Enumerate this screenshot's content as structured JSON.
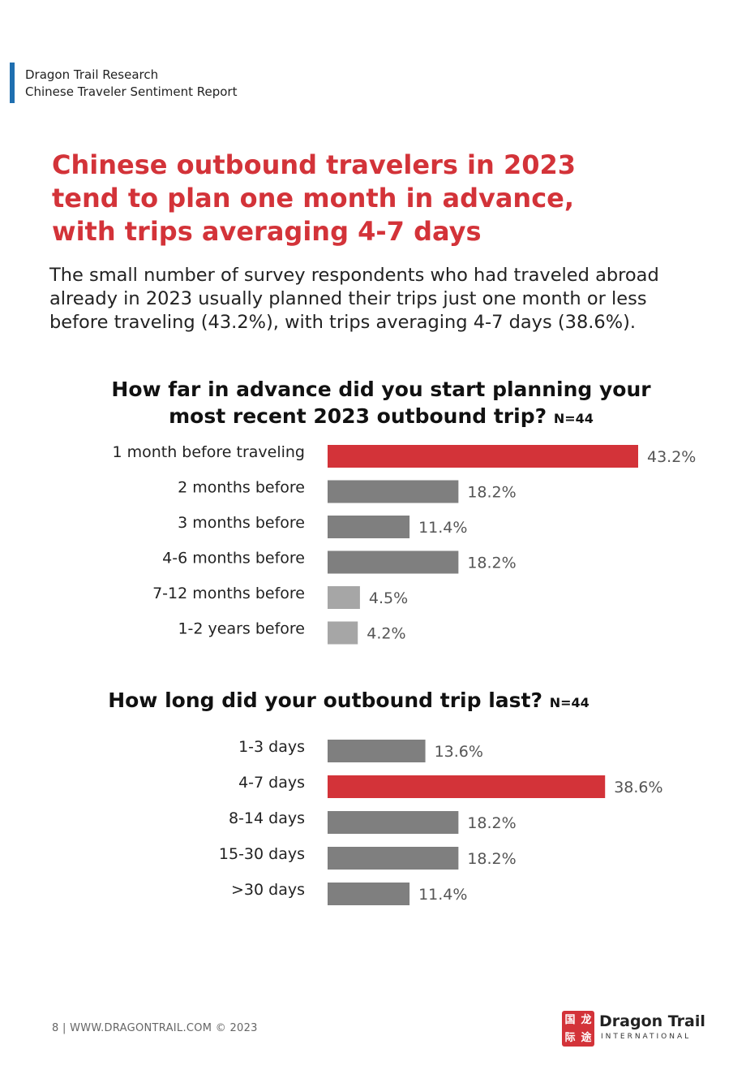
{
  "header": {
    "line1": "Dragon Trail Research",
    "line2": "Chinese Traveler Sentiment Report",
    "accent_color": "#1f6fb0"
  },
  "title": "Chinese outbound travelers in 2023 tend to plan one month in advance, with trips averaging 4-7 days",
  "intro": "The small number of survey respondents who had traveled abroad already in 2023 usually planned their trips just one month or less before traveling (43.2%), with trips averaging 4-7 days (38.6%).",
  "chart_data": [
    {
      "type": "bar",
      "orientation": "horizontal",
      "title": "How far in advance did you start planning your most recent 2023 outbound trip?",
      "sample_note": "N=44",
      "categories": [
        "1 month before traveling",
        "2 months before",
        "3 months before",
        "4-6 months before",
        "7-12 months before",
        "1-2 years before"
      ],
      "values": [
        43.2,
        18.2,
        11.4,
        18.2,
        4.5,
        4.2
      ],
      "value_labels": [
        "43.2%",
        "18.2%",
        "11.4%",
        "18.2%",
        "4.5%",
        "4.2%"
      ],
      "bar_colors": [
        "#d33339",
        "#7f7f7f",
        "#7f7f7f",
        "#7f7f7f",
        "#a6a6a6",
        "#a6a6a6"
      ],
      "xlim": [
        0,
        43.2
      ]
    },
    {
      "type": "bar",
      "orientation": "horizontal",
      "title": "How long did your outbound trip last?",
      "sample_note": "N=44",
      "categories": [
        "1-3 days",
        "4-7 days",
        "8-14 days",
        "15-30 days",
        ">30 days"
      ],
      "values": [
        13.6,
        38.6,
        18.2,
        18.2,
        11.4
      ],
      "value_labels": [
        "13.6%",
        "38.6%",
        "18.2%",
        "18.2%",
        "11.4%"
      ],
      "bar_colors": [
        "#7f7f7f",
        "#d33339",
        "#7f7f7f",
        "#7f7f7f",
        "#7f7f7f"
      ],
      "xlim": [
        0,
        43.2
      ]
    }
  ],
  "footer": {
    "text": "8  |  WWW.DRAGONTRAIL.COM ©  2023"
  },
  "logo": {
    "mark_chars": "国龙际途",
    "name": "Dragon Trail",
    "subtitle": "INTERNATIONAL",
    "brand_color": "#d33339"
  }
}
